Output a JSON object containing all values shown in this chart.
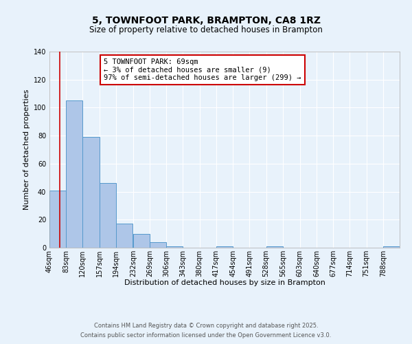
{
  "title": "5, TOWNFOOT PARK, BRAMPTON, CA8 1RZ",
  "subtitle": "Size of property relative to detached houses in Brampton",
  "xlabel": "Distribution of detached houses by size in Brampton",
  "ylabel": "Number of detached properties",
  "bin_labels": [
    "46sqm",
    "83sqm",
    "120sqm",
    "157sqm",
    "194sqm",
    "232sqm",
    "269sqm",
    "306sqm",
    "343sqm",
    "380sqm",
    "417sqm",
    "454sqm",
    "491sqm",
    "528sqm",
    "565sqm",
    "603sqm",
    "640sqm",
    "677sqm",
    "714sqm",
    "751sqm",
    "788sqm"
  ],
  "bin_edges": [
    46,
    83,
    120,
    157,
    194,
    232,
    269,
    306,
    343,
    380,
    417,
    454,
    491,
    528,
    565,
    603,
    640,
    677,
    714,
    751,
    788
  ],
  "bin_width": 37,
  "bar_heights": [
    41,
    105,
    79,
    46,
    17,
    10,
    4,
    1,
    0,
    0,
    1,
    0,
    0,
    1,
    0,
    0,
    0,
    0,
    0,
    0,
    1
  ],
  "bar_color": "#aec6e8",
  "bar_edge_color": "#5599cc",
  "ylim": [
    0,
    140
  ],
  "yticks": [
    0,
    20,
    40,
    60,
    80,
    100,
    120,
    140
  ],
  "property_line_x": 69,
  "property_line_color": "#cc0000",
  "annotation_text": "5 TOWNFOOT PARK: 69sqm\n← 3% of detached houses are smaller (9)\n97% of semi-detached houses are larger (299) →",
  "annotation_box_color": "#ffffff",
  "annotation_box_edge_color": "#cc0000",
  "footer_line1": "Contains HM Land Registry data © Crown copyright and database right 2025.",
  "footer_line2": "Contains public sector information licensed under the Open Government Licence v3.0.",
  "background_color": "#e8f2fb",
  "plot_bg_color": "#e8f2fb",
  "grid_color": "#ffffff",
  "title_fontsize": 10,
  "subtitle_fontsize": 8.5,
  "axis_label_fontsize": 8,
  "tick_fontsize": 7,
  "annotation_fontsize": 7.5,
  "footer_fontsize": 6
}
